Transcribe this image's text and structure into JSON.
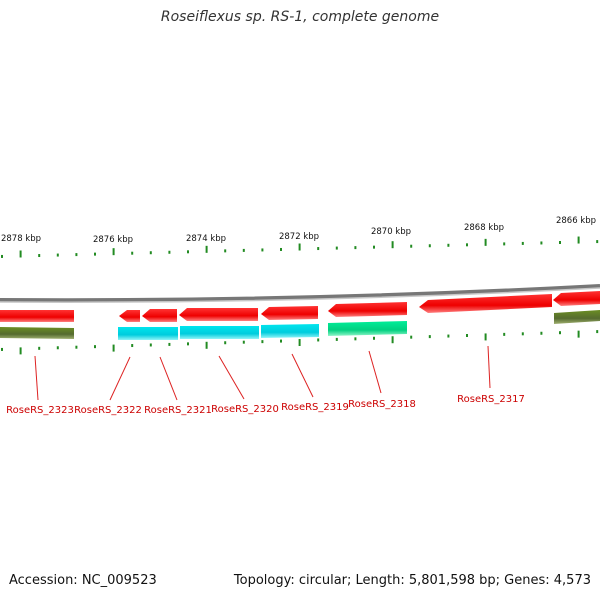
{
  "title": "Roseiflexus sp. RS-1, complete genome",
  "footer": {
    "accession": "Accession: NC_009523",
    "summary": "Topology: circular; Length: 5,801,598 bp; Genes: 4,573"
  },
  "colors": {
    "backbone": "#8a8a8a",
    "tick": "#228b22",
    "label": "#cc0000",
    "leader": "#dd2222",
    "cds": "#ff1010",
    "gene": "#6b8e23",
    "rna_a": "#00e5ee",
    "rna_b": "#00ee99"
  },
  "scale": {
    "ticks": [
      {
        "label": "2878 kbp"
      },
      {
        "label": "2876 kbp"
      },
      {
        "label": "2874 kbp"
      },
      {
        "label": "2872 kbp"
      },
      {
        "label": "2870 kbp"
      },
      {
        "label": "2868 kbp"
      },
      {
        "label": "2866 kbp"
      }
    ]
  },
  "features": [
    {
      "locus": "RoseRS_2323"
    },
    {
      "locus": "RoseRS_2322"
    },
    {
      "locus": "RoseRS_2321"
    },
    {
      "locus": "RoseRS_2320"
    },
    {
      "locus": "RoseRS_2319"
    },
    {
      "locus": "RoseRS_2318"
    },
    {
      "locus": "RoseRS_2317"
    }
  ]
}
